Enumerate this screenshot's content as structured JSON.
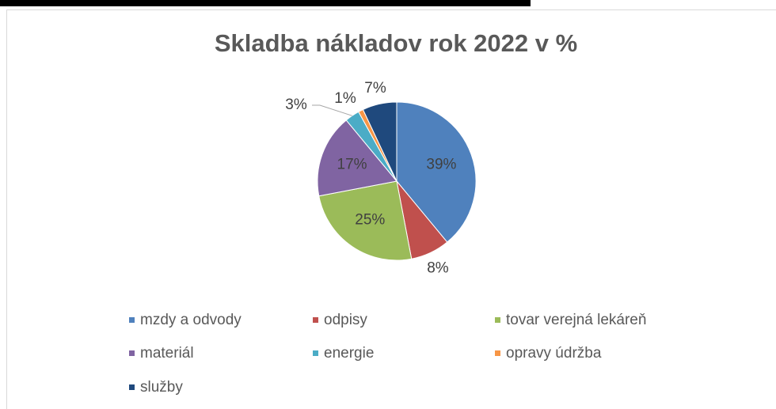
{
  "chart_data": {
    "type": "pie",
    "title": "Skladba nákladov rok 2022 v %",
    "categories": [
      "mzdy a odvody",
      "odpisy",
      "tovar verejná lekáreň",
      "materiál",
      "energie",
      "opravy údržba",
      "služby"
    ],
    "values": [
      39,
      8,
      25,
      17,
      3,
      1,
      7
    ],
    "value_labels": [
      "39%",
      "8%",
      "25%",
      "17%",
      "3%",
      "1%",
      "7%"
    ],
    "colors": [
      "#4f81bd",
      "#c0504d",
      "#9bbb59",
      "#8064a2",
      "#4bacc6",
      "#f79646",
      "#1f497d"
    ],
    "legend": "bottom"
  }
}
